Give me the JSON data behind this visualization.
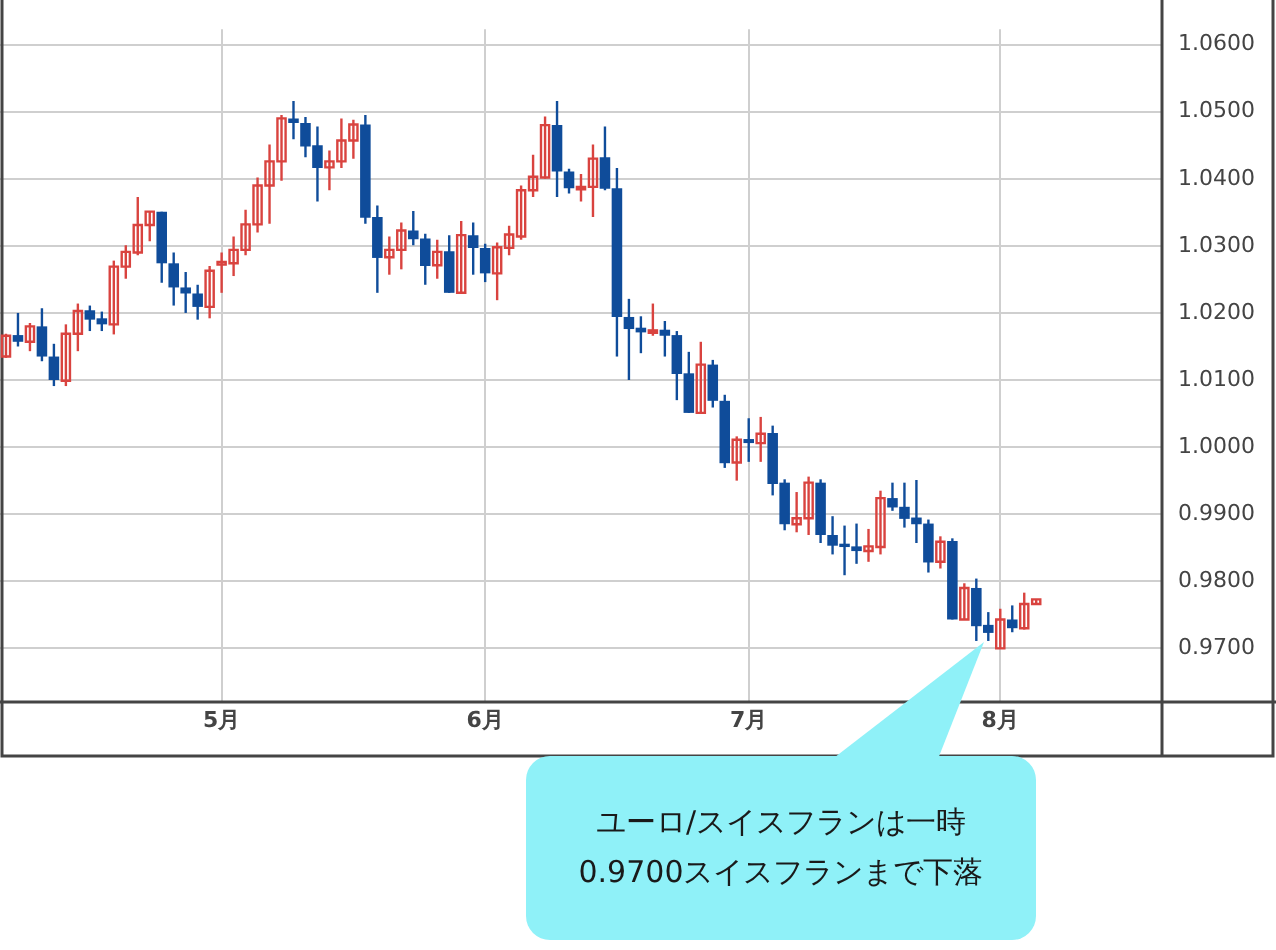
{
  "chart_data": {
    "type": "candlestick",
    "categories": [
      null,
      null,
      null,
      null,
      null,
      null,
      null,
      null,
      null,
      null,
      null,
      null,
      null,
      null,
      null,
      null,
      null,
      null,
      "5月",
      null,
      null,
      null,
      null,
      null,
      null,
      null,
      null,
      null,
      null,
      null,
      null,
      null,
      null,
      null,
      null,
      null,
      null,
      null,
      null,
      null,
      "6月",
      null,
      null,
      null,
      null,
      null,
      null,
      null,
      null,
      null,
      null,
      null,
      null,
      null,
      null,
      null,
      null,
      null,
      null,
      null,
      null,
      null,
      "7月",
      null,
      null,
      null,
      null,
      null,
      null,
      null,
      null,
      null,
      null,
      null,
      null,
      null,
      null,
      null,
      null,
      null,
      null,
      null,
      null,
      "8月",
      null,
      null,
      null,
      null,
      null,
      null,
      null,
      null,
      null,
      null,
      null,
      null,
      null
    ],
    "ohlc": [
      [
        1.0135,
        1.0169,
        1.0133,
        1.0166
      ],
      [
        1.0167,
        1.02,
        1.015,
        1.0157
      ],
      [
        1.0157,
        1.0185,
        1.0143,
        1.018
      ],
      [
        1.018,
        1.0207,
        1.0128,
        1.0135
      ],
      [
        1.0135,
        1.0154,
        1.0091,
        1.01
      ],
      [
        1.0099,
        1.0183,
        1.0091,
        1.0169
      ],
      [
        1.0169,
        1.0214,
        1.0143,
        1.0203
      ],
      [
        1.0204,
        1.0211,
        1.0173,
        1.019
      ],
      [
        1.0192,
        1.0202,
        1.0173,
        1.0183
      ],
      [
        1.0183,
        1.0278,
        1.0168,
        1.0269
      ],
      [
        1.0269,
        1.0301,
        1.0251,
        1.0291
      ],
      [
        1.029,
        1.0373,
        1.0286,
        1.0331
      ],
      [
        1.0331,
        1.0351,
        1.0307,
        1.0351
      ],
      [
        1.0351,
        1.0351,
        1.0245,
        1.0274
      ],
      [
        1.0274,
        1.029,
        1.0211,
        1.0238
      ],
      [
        1.0238,
        1.0261,
        1.02,
        1.0229
      ],
      [
        1.0229,
        1.0242,
        1.019,
        1.0209
      ],
      [
        1.0209,
        1.027,
        1.0192,
        1.0263
      ],
      [
        1.0272,
        1.029,
        1.023,
        1.0276
      ],
      [
        1.0274,
        1.0314,
        1.0255,
        1.0294
      ],
      [
        1.0294,
        1.0354,
        1.0286,
        1.0332
      ],
      [
        1.0332,
        1.0402,
        1.032,
        1.039
      ],
      [
        1.039,
        1.0451,
        1.0333,
        1.0426
      ],
      [
        1.0426,
        1.0495,
        1.0397,
        1.049
      ],
      [
        1.049,
        1.0516,
        1.0459,
        1.0483
      ],
      [
        1.0483,
        1.0492,
        1.0432,
        1.0448
      ],
      [
        1.045,
        1.0478,
        1.0366,
        1.0416
      ],
      [
        1.0417,
        1.0442,
        1.0383,
        1.0426
      ],
      [
        1.0426,
        1.049,
        1.0416,
        1.0457
      ],
      [
        1.0457,
        1.0488,
        1.043,
        1.0481
      ],
      [
        1.0481,
        1.0495,
        1.0333,
        1.0342
      ],
      [
        1.0343,
        1.036,
        1.023,
        1.0282
      ],
      [
        1.0283,
        1.0314,
        1.0257,
        1.0294
      ],
      [
        1.0294,
        1.0335,
        1.0265,
        1.0323
      ],
      [
        1.0323,
        1.0352,
        1.0301,
        1.031
      ],
      [
        1.0311,
        1.0318,
        1.0242,
        1.027
      ],
      [
        1.0271,
        1.0309,
        1.0251,
        1.0291
      ],
      [
        1.0292,
        1.0316,
        1.023,
        1.023
      ],
      [
        1.023,
        1.0337,
        1.023,
        1.0316
      ],
      [
        1.0316,
        1.0335,
        1.0257,
        1.0297
      ],
      [
        1.0297,
        1.0303,
        1.0246,
        1.0259
      ],
      [
        1.0259,
        1.0305,
        1.0219,
        1.0298
      ],
      [
        1.0297,
        1.033,
        1.0286,
        1.0317
      ],
      [
        1.0314,
        1.039,
        1.0309,
        1.0383
      ],
      [
        1.0383,
        1.0436,
        1.0373,
        1.0403
      ],
      [
        1.0402,
        1.0493,
        1.04,
        1.048
      ],
      [
        1.048,
        1.0516,
        1.0373,
        1.0411
      ],
      [
        1.0411,
        1.0415,
        1.0378,
        1.0386
      ],
      [
        1.0386,
        1.0407,
        1.0366,
        1.0388
      ],
      [
        1.0388,
        1.0451,
        1.0343,
        1.043
      ],
      [
        1.0432,
        1.0478,
        1.0383,
        1.0385
      ],
      [
        1.0386,
        1.0416,
        1.0135,
        1.0194
      ],
      [
        1.0194,
        1.0221,
        1.01,
        1.0176
      ],
      [
        1.0178,
        1.0195,
        1.014,
        1.0171
      ],
      [
        1.0171,
        1.0214,
        1.0166,
        1.0174
      ],
      [
        1.0175,
        1.0188,
        1.0135,
        1.0166
      ],
      [
        1.0167,
        1.0173,
        1.007,
        1.0109
      ],
      [
        1.011,
        1.0142,
        1.0051,
        1.0051
      ],
      [
        1.0051,
        1.0157,
        1.0051,
        1.0123
      ],
      [
        1.0123,
        1.013,
        1.0059,
        1.0069
      ],
      [
        1.0069,
        1.0078,
        0.9969,
        0.9976
      ],
      [
        0.9977,
        1.0016,
        0.995,
        1.0011
      ],
      [
        1.0012,
        1.0043,
        0.9978,
        1.0006
      ],
      [
        1.0006,
        1.0045,
        0.9978,
        1.002
      ],
      [
        1.0021,
        1.0032,
        0.9928,
        0.9945
      ],
      [
        0.9947,
        0.9952,
        0.9876,
        0.9885
      ],
      [
        0.9885,
        0.9933,
        0.9873,
        0.9894
      ],
      [
        0.9894,
        0.9956,
        0.9869,
        0.9947
      ],
      [
        0.9947,
        0.9952,
        0.9857,
        0.9869
      ],
      [
        0.9869,
        0.9897,
        0.984,
        0.9853
      ],
      [
        0.9856,
        0.9883,
        0.9809,
        0.9851
      ],
      [
        0.9852,
        0.9886,
        0.9826,
        0.9845
      ],
      [
        0.9845,
        0.9878,
        0.9829,
        0.9852
      ],
      [
        0.9851,
        0.9935,
        0.984,
        0.9924
      ],
      [
        0.9924,
        0.9947,
        0.9905,
        0.991
      ],
      [
        0.9911,
        0.9947,
        0.988,
        0.9893
      ],
      [
        0.9895,
        0.9951,
        0.9857,
        0.9885
      ],
      [
        0.9886,
        0.9892,
        0.9813,
        0.9828
      ],
      [
        0.9829,
        0.9867,
        0.9819,
        0.9859
      ],
      [
        0.986,
        0.9864,
        0.9743,
        0.9743
      ],
      [
        0.9743,
        0.9797,
        0.9743,
        0.979
      ],
      [
        0.979,
        0.9804,
        0.9711,
        0.9733
      ],
      [
        0.9735,
        0.9754,
        0.9711,
        0.9723
      ],
      [
        0.97,
        0.9759,
        0.97,
        0.9743
      ],
      [
        0.9743,
        0.9764,
        0.9724,
        0.973
      ],
      [
        0.973,
        0.9783,
        0.9728,
        0.9766
      ],
      [
        0.9766,
        0.9773,
        0.9766,
        0.9773
      ],
      null,
      null,
      null,
      null,
      null,
      null,
      null,
      null,
      null,
      null
    ],
    "colors": [
      "#d9433f",
      "#0f4c9a",
      "#d9433f",
      "#0f4c9a",
      "#0f4c9a",
      "#d9433f",
      "#d9433f",
      "#0f4c9a",
      "#0f4c9a",
      "#d9433f",
      "#d9433f",
      "#d9433f",
      "#d9433f",
      "#0f4c9a",
      "#0f4c9a",
      "#0f4c9a",
      "#0f4c9a",
      "#d9433f",
      "#d9433f",
      "#d9433f",
      "#d9433f",
      "#d9433f",
      "#d9433f",
      "#d9433f",
      "#0f4c9a",
      "#0f4c9a",
      "#0f4c9a",
      "#d9433f",
      "#d9433f",
      "#d9433f",
      "#0f4c9a",
      "#0f4c9a",
      "#d9433f",
      "#d9433f",
      "#0f4c9a",
      "#0f4c9a",
      "#d9433f",
      "#0f4c9a",
      "#d9433f",
      "#0f4c9a",
      "#0f4c9a",
      "#d9433f",
      "#d9433f",
      "#d9433f",
      "#d9433f",
      "#d9433f",
      "#0f4c9a",
      "#0f4c9a",
      "#d9433f",
      "#d9433f",
      "#0f4c9a",
      "#0f4c9a",
      "#0f4c9a",
      "#0f4c9a",
      "#d9433f",
      "#0f4c9a",
      "#0f4c9a",
      "#0f4c9a",
      "#d9433f",
      "#0f4c9a",
      "#0f4c9a",
      "#d9433f",
      "#0f4c9a",
      "#d9433f",
      "#0f4c9a",
      "#0f4c9a",
      "#d9433f",
      "#d9433f",
      "#0f4c9a",
      "#0f4c9a",
      "#0f4c9a",
      "#0f4c9a",
      "#d9433f",
      "#d9433f",
      "#0f4c9a",
      "#0f4c9a",
      "#0f4c9a",
      "#0f4c9a",
      "#d9433f",
      "#0f4c9a",
      "#d9433f",
      "#0f4c9a",
      "#0f4c9a",
      "#d9433f",
      "#0f4c9a",
      "#d9433f",
      "#d9433f",
      null,
      null,
      null,
      null,
      null,
      null,
      null,
      null,
      null,
      null
    ],
    "ylim": [
      0.962,
      1.0623
    ],
    "yticks": [
      {
        "value": 0.97,
        "label": "0.9700"
      },
      {
        "value": 0.98,
        "label": "0.9800"
      },
      {
        "value": 0.99,
        "label": "0.9900"
      },
      {
        "value": 1.0,
        "label": "1.0000"
      },
      {
        "value": 1.01,
        "label": "1.0100"
      },
      {
        "value": 1.02,
        "label": "1.0200"
      },
      {
        "value": 1.03,
        "label": "1.0300"
      },
      {
        "value": 1.04,
        "label": "1.0400"
      },
      {
        "value": 1.05,
        "label": "1.0500"
      },
      {
        "value": 1.06,
        "label": "1.0600"
      }
    ],
    "grid": true,
    "legend": false,
    "annotations": [
      "ユーロ/スイスフランは一時0.9700スイスフランまで下落"
    ]
  }
}
